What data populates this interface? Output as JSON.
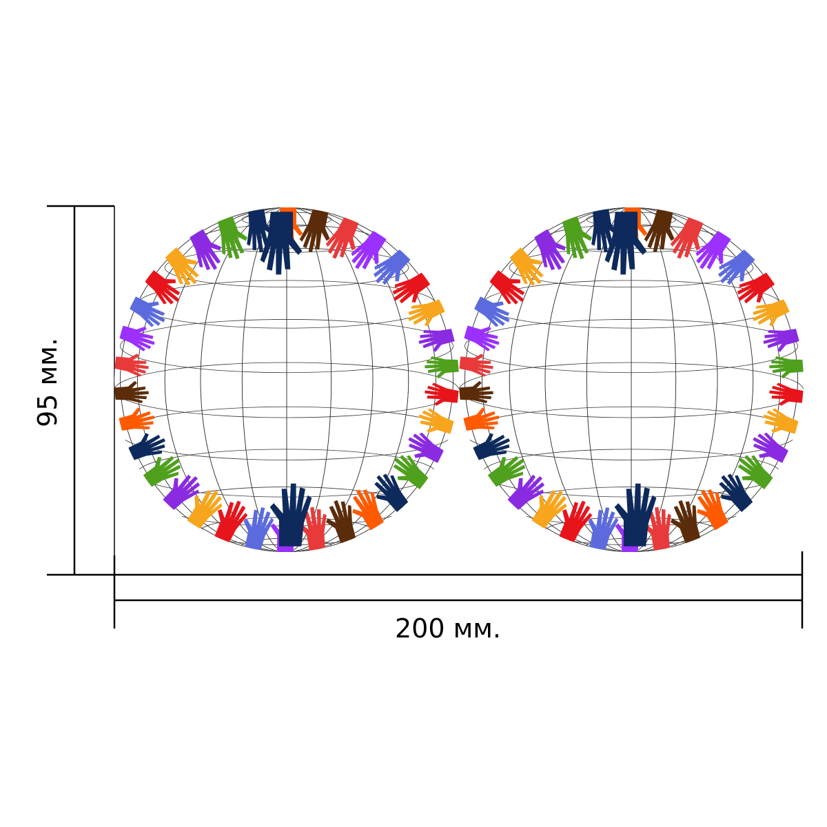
{
  "dimensions": {
    "height_label": "95 мм.",
    "width_label": "200 мм."
  },
  "globes": [
    {
      "name": "left-globe"
    },
    {
      "name": "right-globe"
    }
  ],
  "colors": {
    "line": "#000000",
    "grid": "#333333",
    "hand_palette": [
      "#e8141b",
      "#f7a51c",
      "#8a2be2",
      "#4fa01d",
      "#0e2a5c",
      "#ff5a00",
      "#5b2c0a",
      "#e83a3a",
      "#9b30ff",
      "#5b6bde"
    ]
  }
}
